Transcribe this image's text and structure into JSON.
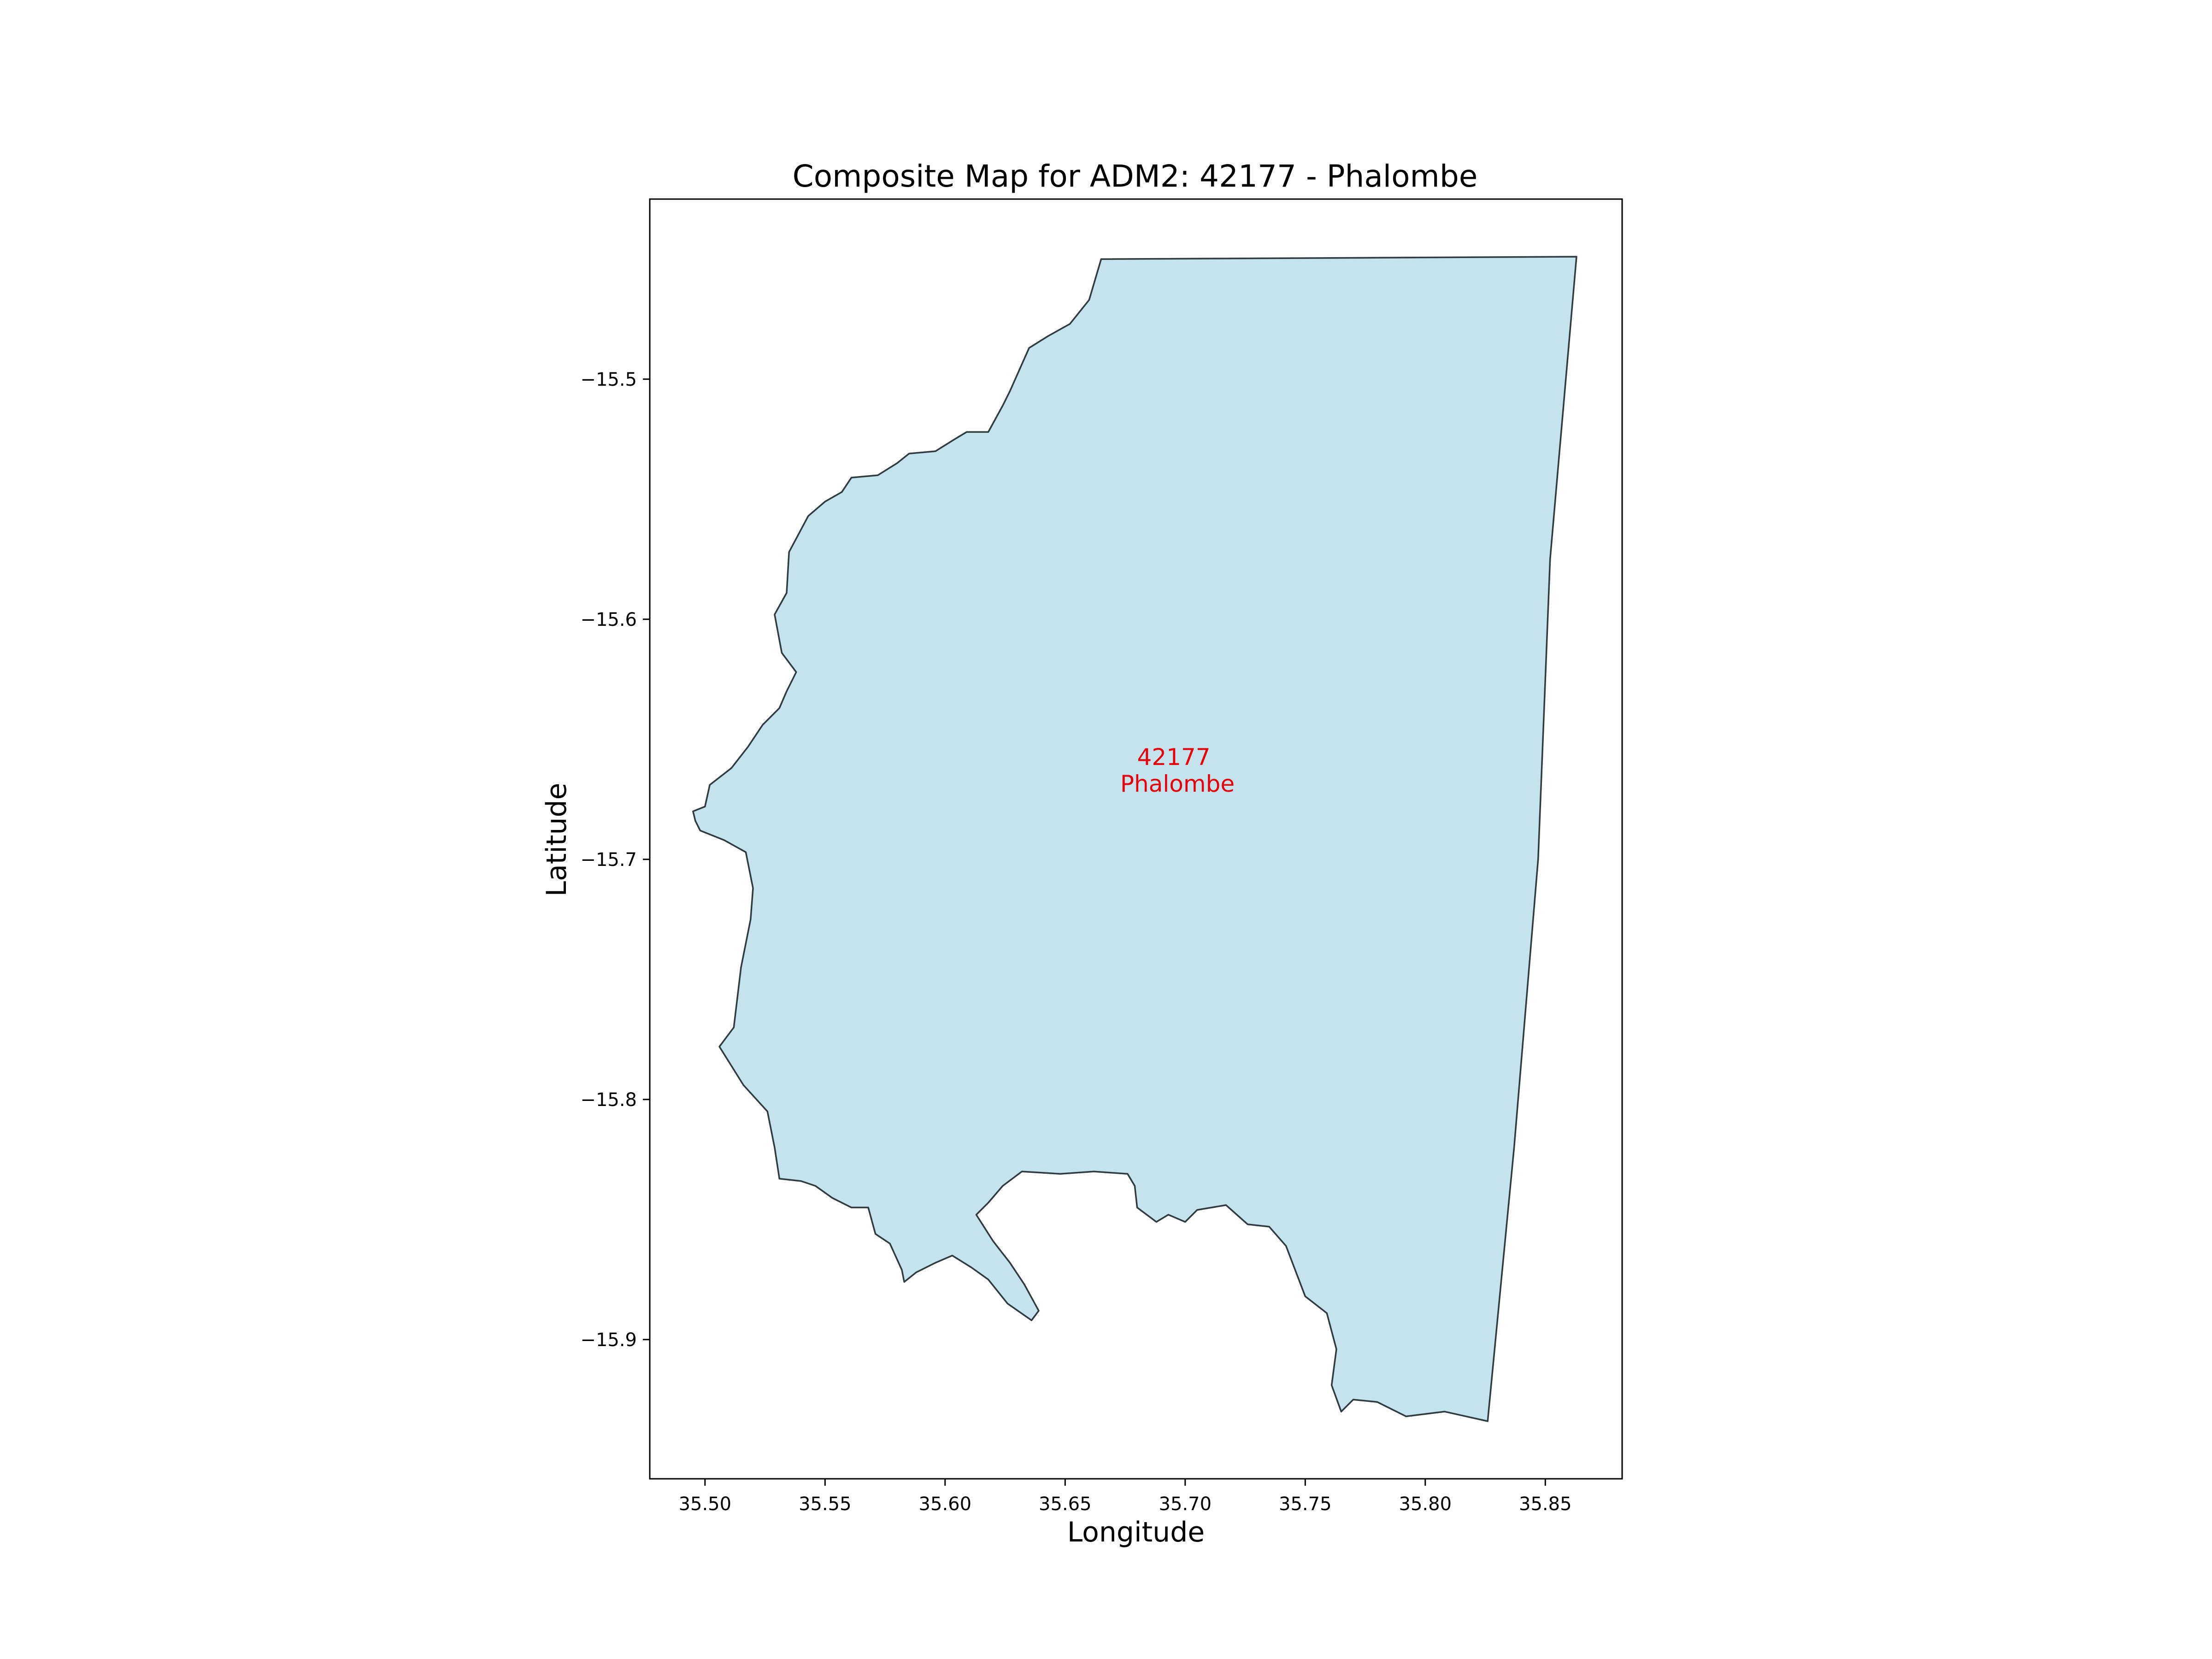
{
  "chart_data": {
    "type": "map",
    "title": "Composite Map for ADM2: 42177 - Phalombe",
    "xlabel": "Longitude",
    "ylabel": "Latitude",
    "xlim": [
      35.477,
      35.882
    ],
    "ylim": [
      -15.958,
      -15.425
    ],
    "xticks": [
      35.5,
      35.55,
      35.6,
      35.65,
      35.7,
      35.75,
      35.8,
      35.85
    ],
    "xtick_labels": [
      "35.50",
      "35.55",
      "35.60",
      "35.65",
      "35.70",
      "35.75",
      "35.80",
      "35.85"
    ],
    "yticks": [
      -15.5,
      -15.6,
      -15.7,
      -15.8,
      -15.9
    ],
    "ytick_labels": [
      "−15.5",
      "−15.6",
      "−15.7",
      "−15.8",
      "−15.9"
    ],
    "grid": false,
    "region": {
      "id": "42177",
      "name": "Phalombe",
      "label_lines": [
        "42177",
        "Phalombe"
      ],
      "label_color": "#e8000b",
      "fill": "#c5e3ec",
      "stroke": "#2f3b3f",
      "boundary": [
        [
          35.665,
          -15.45
        ],
        [
          35.863,
          -15.449
        ],
        [
          35.852,
          -15.575
        ],
        [
          35.847,
          -15.7
        ],
        [
          35.837,
          -15.82
        ],
        [
          35.826,
          -15.934
        ],
        [
          35.808,
          -15.93
        ],
        [
          35.792,
          -15.932
        ],
        [
          35.78,
          -15.926
        ],
        [
          35.77,
          -15.925
        ],
        [
          35.765,
          -15.93
        ],
        [
          35.761,
          -15.919
        ],
        [
          35.763,
          -15.904
        ],
        [
          35.759,
          -15.889
        ],
        [
          35.75,
          -15.882
        ],
        [
          35.742,
          -15.861
        ],
        [
          35.735,
          -15.853
        ],
        [
          35.726,
          -15.852
        ],
        [
          35.717,
          -15.844
        ],
        [
          35.705,
          -15.846
        ],
        [
          35.7,
          -15.851
        ],
        [
          35.693,
          -15.848
        ],
        [
          35.688,
          -15.851
        ],
        [
          35.68,
          -15.845
        ],
        [
          35.679,
          -15.836
        ],
        [
          35.676,
          -15.831
        ],
        [
          35.662,
          -15.83
        ],
        [
          35.648,
          -15.831
        ],
        [
          35.632,
          -15.83
        ],
        [
          35.624,
          -15.836
        ],
        [
          35.618,
          -15.843
        ],
        [
          35.613,
          -15.848
        ],
        [
          35.62,
          -15.859
        ],
        [
          35.627,
          -15.868
        ],
        [
          35.633,
          -15.877
        ],
        [
          35.639,
          -15.888
        ],
        [
          35.636,
          -15.892
        ],
        [
          35.626,
          -15.885
        ],
        [
          35.618,
          -15.875
        ],
        [
          35.611,
          -15.87
        ],
        [
          35.603,
          -15.865
        ],
        [
          35.596,
          -15.868
        ],
        [
          35.588,
          -15.872
        ],
        [
          35.583,
          -15.876
        ],
        [
          35.582,
          -15.871
        ],
        [
          35.577,
          -15.86
        ],
        [
          35.571,
          -15.856
        ],
        [
          35.568,
          -15.845
        ],
        [
          35.561,
          -15.845
        ],
        [
          35.553,
          -15.841
        ],
        [
          35.546,
          -15.836
        ],
        [
          35.54,
          -15.834
        ],
        [
          35.531,
          -15.833
        ],
        [
          35.529,
          -15.82
        ],
        [
          35.526,
          -15.805
        ],
        [
          35.516,
          -15.794
        ],
        [
          35.506,
          -15.778
        ],
        [
          35.512,
          -15.77
        ],
        [
          35.515,
          -15.745
        ],
        [
          35.519,
          -15.725
        ],
        [
          35.52,
          -15.712
        ],
        [
          35.517,
          -15.697
        ],
        [
          35.508,
          -15.692
        ],
        [
          35.498,
          -15.688
        ],
        [
          35.496,
          -15.684
        ],
        [
          35.495,
          -15.68
        ],
        [
          35.5,
          -15.678
        ],
        [
          35.502,
          -15.669
        ],
        [
          35.511,
          -15.662
        ],
        [
          35.518,
          -15.653
        ],
        [
          35.524,
          -15.644
        ],
        [
          35.531,
          -15.637
        ],
        [
          35.534,
          -15.63
        ],
        [
          35.538,
          -15.622
        ],
        [
          35.532,
          -15.614
        ],
        [
          35.529,
          -15.598
        ],
        [
          35.534,
          -15.589
        ],
        [
          35.535,
          -15.572
        ],
        [
          35.543,
          -15.557
        ],
        [
          35.55,
          -15.551
        ],
        [
          35.557,
          -15.547
        ],
        [
          35.561,
          -15.541
        ],
        [
          35.572,
          -15.54
        ],
        [
          35.58,
          -15.535
        ],
        [
          35.585,
          -15.531
        ],
        [
          35.596,
          -15.53
        ],
        [
          35.604,
          -15.525
        ],
        [
          35.609,
          -15.522
        ],
        [
          35.618,
          -15.522
        ],
        [
          35.624,
          -15.511
        ],
        [
          35.627,
          -15.505
        ],
        [
          35.631,
          -15.496
        ],
        [
          35.635,
          -15.487
        ],
        [
          35.643,
          -15.482
        ],
        [
          35.652,
          -15.477
        ],
        [
          35.66,
          -15.467
        ],
        [
          35.665,
          -15.45
        ]
      ]
    }
  }
}
